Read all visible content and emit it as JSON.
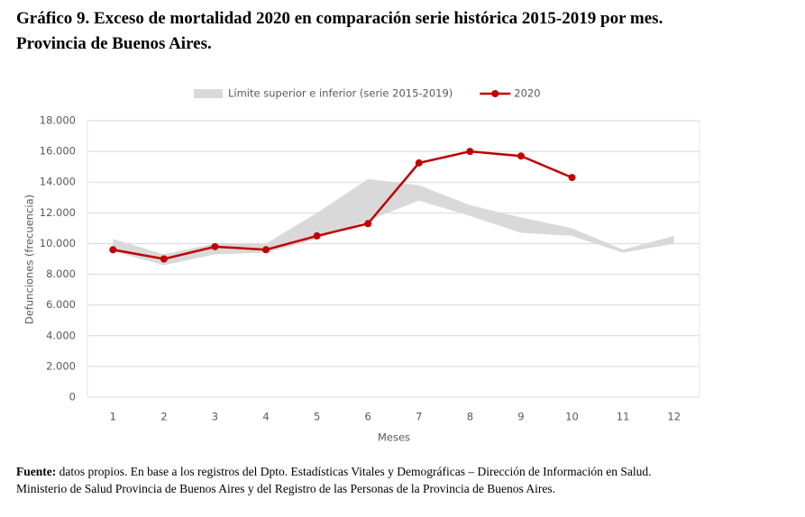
{
  "title": "Gráfico 9. Exceso de mortalidad 2020 en comparación serie histórica 2015-2019 por mes.",
  "title_line2": "Provincia de Buenos Aires.",
  "chart_data": {
    "type": "line",
    "categories": [
      "1",
      "2",
      "3",
      "4",
      "5",
      "6",
      "7",
      "8",
      "9",
      "10",
      "11",
      "12"
    ],
    "series": [
      {
        "name": "Límite superior e inferior (serie 2015-2019)",
        "type": "band",
        "color": "#d9d9d9",
        "upper": [
          10300,
          9300,
          10000,
          10000,
          12000,
          14200,
          13800,
          12500,
          11700,
          11000,
          9600,
          10500
        ],
        "lower": [
          9500,
          8600,
          9300,
          9400,
          10300,
          11500,
          12800,
          11800,
          10700,
          10500,
          9400,
          10000
        ]
      },
      {
        "name": "2020",
        "type": "line",
        "color": "#c00000",
        "values": [
          9600,
          9000,
          9800,
          9600,
          10500,
          11300,
          15250,
          16000,
          15700,
          14300,
          null,
          null
        ]
      }
    ],
    "ylim": [
      0,
      18000
    ],
    "yticks": [
      0,
      {
        "value": 2000,
        "label": "2.000"
      },
      {
        "value": 4000,
        "label": "4.000"
      },
      {
        "value": 6000,
        "label": "6.000"
      },
      {
        "value": 8000,
        "label": "8.000"
      },
      {
        "value": 10000,
        "label": "10.000"
      },
      {
        "value": 12000,
        "label": "12.000"
      },
      {
        "value": 14000,
        "label": "14.000"
      },
      {
        "value": 16000,
        "label": "16.000"
      },
      {
        "value": 18000,
        "label": "18.000"
      }
    ],
    "grid": true,
    "legend": "top",
    "ylabel": "Defunciones (frecuencia)",
    "xlabel": "Meses"
  },
  "source": {
    "label": "Fuente:",
    "text": "datos propios. En base a los registros del Dpto. Estadísticas Vitales y Demográficas – Dirección de Información en Salud.",
    "text_line2": "Ministerio de Salud Provincia de Buenos Aires y del Registro de las Personas de la Provincia de Buenos Aires."
  }
}
